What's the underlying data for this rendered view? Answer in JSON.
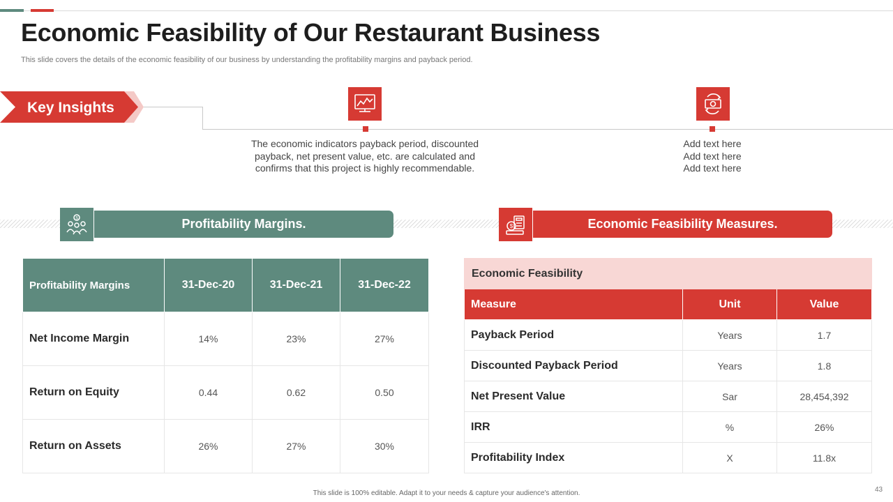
{
  "title": "Economic Feasibility of Our Restaurant Business",
  "subtitle": "This slide covers the details of the economic feasibility of our business by understanding the profitability margins and payback period.",
  "insights": {
    "label": "Key Insights",
    "item1": {
      "icon": "stock-chart-icon",
      "lines": [
        "The economic indicators payback period, discounted",
        "payback, net present value, etc. are calculated and",
        "confirms that this project is highly recommendable."
      ]
    },
    "item2": {
      "icon": "money-exchange-icon",
      "lines": [
        "Add text here",
        "Add text here",
        "Add text here"
      ]
    }
  },
  "profitability": {
    "header": "Profitability Margins.",
    "icon": "people-money-icon",
    "columns": [
      "Profitability Margins",
      "31-Dec-20",
      "31-Dec-21",
      "31-Dec-22"
    ],
    "rows": [
      [
        "Net Income Margin",
        "14%",
        "23%",
        "27%"
      ],
      [
        "Return on Equity",
        "0.44",
        "0.62",
        "0.50"
      ],
      [
        "Return on Assets",
        "26%",
        "27%",
        "30%"
      ]
    ]
  },
  "feasibility": {
    "header": "Economic Feasibility Measures.",
    "icon": "calculator-money-icon",
    "caption": "Economic Feasibility",
    "columns": [
      "Measure",
      "Unit",
      "Value"
    ],
    "rows": [
      [
        "Payback Period",
        "Years",
        "1.7"
      ],
      [
        "Discounted Payback Period",
        "Years",
        "1.8"
      ],
      [
        "Net Present Value",
        "Sar",
        "28,454,392"
      ],
      [
        "IRR",
        "%",
        "26%"
      ],
      [
        "Profitability Index",
        "X",
        "11.8x"
      ]
    ]
  },
  "footer": "This slide is 100% editable.  Adapt it to your needs & capture your audience's attention.",
  "page_number": "43",
  "colors": {
    "red": "#d63a33",
    "green": "#5e8a7e",
    "pink": "#f8d7d5"
  }
}
